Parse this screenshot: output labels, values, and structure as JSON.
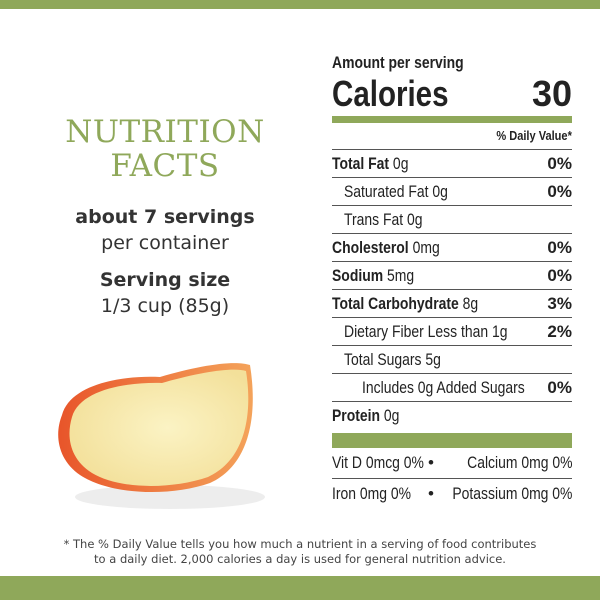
{
  "colors": {
    "accent": "#8fa85a",
    "text": "#222222"
  },
  "left": {
    "title_line1": "NUTRITION",
    "title_line2": "FACTS",
    "servings": "about 7 servings",
    "per_container": "per container",
    "serving_size_label": "Serving size",
    "serving_size_value": "1/3 cup (85g)"
  },
  "label": {
    "amount_per_serving": "Amount per serving",
    "calories_label": "Calories",
    "calories_value": "30",
    "daily_value_header": "% Daily Value*",
    "rows": [
      {
        "name": "Total Fat",
        "amount": "0g",
        "dv": "0%"
      },
      {
        "name": "Saturated Fat",
        "amount": "0g",
        "dv": "0%"
      },
      {
        "name": "Trans Fat",
        "amount": "0g",
        "dv": ""
      },
      {
        "name": "Cholesterol",
        "amount": "0mg",
        "dv": "0%"
      },
      {
        "name": "Sodium",
        "amount": "5mg",
        "dv": "0%"
      },
      {
        "name": "Total Carbohydrate",
        "amount": "8g",
        "dv": "3%"
      },
      {
        "name": "Dietary Fiber",
        "amount": "Less than 1g",
        "dv": "2%"
      },
      {
        "name": "Total Sugars",
        "amount": "5g",
        "dv": ""
      },
      {
        "name": "Includes 0g Added Sugars",
        "amount": "",
        "dv": "0%"
      },
      {
        "name": "Protein",
        "amount": "0g",
        "dv": ""
      }
    ],
    "vitamins": [
      {
        "left": "Vit D 0mcg 0%",
        "right": "Calcium 0mg 0%"
      },
      {
        "left": "Iron 0mg 0%",
        "right": "Potassium 0mg 0%"
      }
    ],
    "bullet": "•"
  },
  "footnote": {
    "line1": "* The % Daily Value tells you how much a nutrient in a serving of food contributes",
    "line2": "to a daily diet. 2,000 calories a day is used for general nutrition advice."
  }
}
